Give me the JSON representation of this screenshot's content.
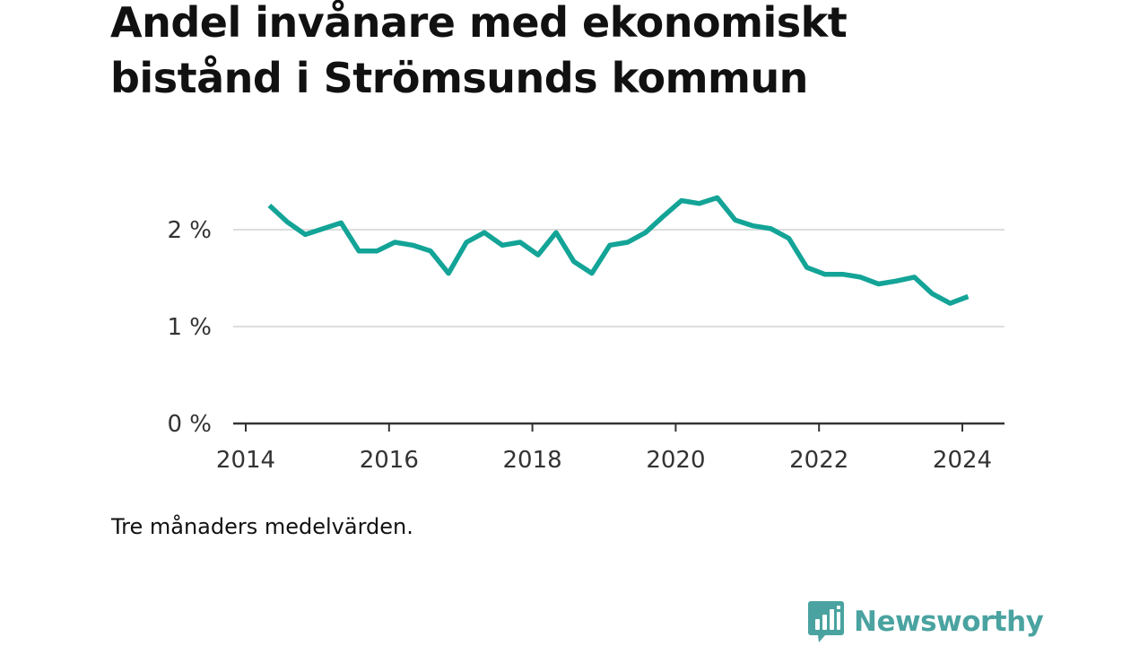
{
  "title": "Andel invånare med ekonomiskt bistånd i Strömsunds kommun",
  "footnote": "Tre månaders medelvärden.",
  "logo": {
    "text": "Newsworthy",
    "icon": "bar-chart-speech-bubble-icon",
    "color": "#4aa3a0"
  },
  "colors": {
    "line": "#13a497",
    "grid": "#dddddd",
    "axis": "#333333"
  },
  "chart_data": {
    "type": "line",
    "title": "Andel invånare med ekonomiskt bistånd i Strömsunds kommun",
    "xlabel": "",
    "ylabel": "",
    "xlim": [
      2014,
      2024.7
    ],
    "ylim": [
      0,
      2.5
    ],
    "x_ticks": [
      2014,
      2016,
      2018,
      2020,
      2022,
      2024
    ],
    "y_ticks": [
      {
        "value": 0,
        "label": "0 %"
      },
      {
        "value": 1,
        "label": "1 %"
      },
      {
        "value": 2,
        "label": "2 %"
      }
    ],
    "grid": "horizontal",
    "legend": "none",
    "series": [
      {
        "x": [
          2014.33,
          2014.58,
          2014.83,
          2015.08,
          2015.33,
          2015.58,
          2015.83,
          2016.08,
          2016.33,
          2016.58,
          2016.83,
          2017.08,
          2017.33,
          2017.58,
          2017.83,
          2018.08,
          2018.33,
          2018.58,
          2018.83,
          2019.08,
          2019.33,
          2019.58,
          2019.83,
          2020.08,
          2020.33,
          2020.58,
          2020.83,
          2021.08,
          2021.33,
          2021.58,
          2021.83,
          2022.08,
          2022.33,
          2022.58,
          2022.83,
          2023.08,
          2023.33,
          2023.58,
          2023.83,
          2024.08
        ],
        "values": [
          2.25,
          2.08,
          1.95,
          2.01,
          2.07,
          1.78,
          1.78,
          1.87,
          1.84,
          1.78,
          1.55,
          1.87,
          1.97,
          1.84,
          1.87,
          1.74,
          1.97,
          1.67,
          1.55,
          1.84,
          1.87,
          1.97,
          2.14,
          2.3,
          2.27,
          2.33,
          2.1,
          2.04,
          2.01,
          1.91,
          1.61,
          1.54,
          1.54,
          1.51,
          1.44,
          1.47,
          1.51,
          1.34,
          1.24,
          1.31
        ]
      }
    ]
  }
}
